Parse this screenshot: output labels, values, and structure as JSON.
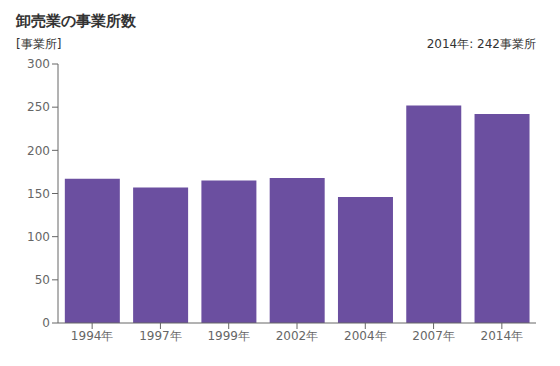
{
  "chart_data": {
    "type": "bar",
    "title": "卸売業の事業所数",
    "ylabel": "[事業所]",
    "annotation": "2014年: 242事業所",
    "categories": [
      "1994年",
      "1997年",
      "1999年",
      "2002年",
      "2004年",
      "2007年",
      "2014年"
    ],
    "values": [
      167,
      157,
      165,
      168,
      146,
      252,
      242
    ],
    "color": "#6b4fa0",
    "ylim": [
      0,
      300
    ],
    "yticks": [
      0,
      50,
      100,
      150,
      200,
      250,
      300
    ],
    "grid": false
  }
}
